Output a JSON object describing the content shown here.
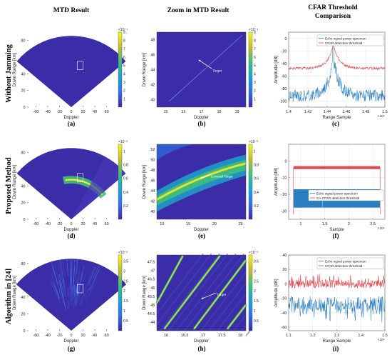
{
  "headers": {
    "col1": "MTD Result",
    "col2": "Zoom in MTD Result",
    "col3_line1": "CFAR Threshold",
    "col3_line2": "Comparison"
  },
  "row_labels": [
    "Without Jamming",
    "Proposed Method",
    "Algorithm in [24]"
  ],
  "captions": [
    "(a)",
    "(b)",
    "(c)",
    "(d)",
    "(e)",
    "(f)",
    "(g)",
    "(h)",
    "(i)"
  ],
  "colors": {
    "field_blue": "#3b2da8",
    "echo_blue": "#2a7fc0",
    "threshold_red": "#e0474c",
    "highlight_yellow": "#f5e62a",
    "highlight_green": "#3fc07a"
  },
  "chart_data": [
    {
      "id": "a",
      "type": "heatmap",
      "panel": "polar-sector",
      "xlabel": "Doppler",
      "ylabel": "Down Range [km]",
      "xticks": [
        "-60",
        "-40",
        "-20",
        "0",
        "20",
        "40",
        "60"
      ],
      "yticks": [
        "0",
        "20",
        "40",
        "60",
        "80"
      ],
      "xlim": [
        -75,
        75
      ],
      "ylim": [
        0,
        90
      ],
      "colorbar_ticks": [
        "1",
        "2",
        "3",
        "4",
        "5",
        "6",
        "7",
        "8",
        "9"
      ],
      "colorbar_exp": "×10⁻⁴",
      "colorbar_range": [
        0,
        9
      ]
    },
    {
      "id": "b",
      "type": "heatmap",
      "panel": "zoom",
      "xlabel": "Doppler",
      "ylabel": "Down Range [km]",
      "xticks": [
        "15",
        "16",
        "17",
        "18",
        "19"
      ],
      "yticks": [
        "40",
        "42",
        "44",
        "46",
        "48"
      ],
      "xlim": [
        14.5,
        19.5
      ],
      "ylim": [
        39,
        49
      ],
      "colorbar_ticks": [
        "1",
        "2",
        "3",
        "4",
        "5",
        "6",
        "7",
        "8",
        "9"
      ],
      "colorbar_exp": "×10⁻⁴",
      "colorbar_range": [
        0,
        9
      ],
      "annotation": "Target",
      "diagonal_lines": [
        {
          "x": [
            15.2,
            19.3
          ],
          "y": [
            39.8,
            48.6
          ]
        }
      ],
      "arrow": {
        "from": [
          17.6,
          44.1
        ],
        "to": [
          16.85,
          45.3
        ]
      }
    },
    {
      "id": "c",
      "type": "line",
      "panel": "cfar",
      "xlabel": "Range Sample",
      "ylabel": "Amplitude [dB]",
      "xticks": [
        "1.4",
        "1.42",
        "1.44",
        "1.46",
        "1.48",
        "1.5"
      ],
      "yticks": [
        "-100",
        "-80",
        "-60",
        "-40",
        "-20",
        "0"
      ],
      "xlim": [
        1.4,
        1.5
      ],
      "ylim": [
        -110,
        10
      ],
      "x_exp": "×10⁴",
      "legend": [
        "Echo signal power spectrum",
        "CFAR detection threshold"
      ],
      "peak_x": 1.4465
    },
    {
      "id": "d",
      "type": "heatmap",
      "panel": "polar-sector",
      "xlabel": "Doppler",
      "ylabel": "Down Range [km]",
      "xticks": [
        "-60",
        "-40",
        "-20",
        "0",
        "20",
        "40",
        "60"
      ],
      "yticks": [
        "0",
        "20",
        "40",
        "60",
        "80"
      ],
      "xlim": [
        -75,
        75
      ],
      "ylim": [
        0,
        90
      ],
      "colorbar_ticks": [
        "0.2",
        "0.4",
        "0.6",
        "0.8",
        "1"
      ],
      "colorbar_exp": "×10⁻³",
      "colorbar_range": [
        0,
        1.1
      ]
    },
    {
      "id": "e",
      "type": "heatmap",
      "panel": "zoom",
      "xlabel": "Doppler",
      "ylabel": "Down Range [km]",
      "xticks": [
        "10",
        "15",
        "20",
        "25"
      ],
      "yticks": [
        "40",
        "42",
        "44",
        "46",
        "48",
        "50",
        "52"
      ],
      "xlim": [
        9,
        26
      ],
      "ylim": [
        38.5,
        53
      ],
      "colorbar_ticks": [
        "0.2",
        "0.4",
        "0.6",
        "0.8",
        "1"
      ],
      "colorbar_exp": "×10⁻³",
      "colorbar_range": [
        0,
        1.1
      ],
      "annotation": "Covered Target",
      "arrow": {
        "from": [
          19.2,
          47.1
        ],
        "to": [
          17.3,
          46.4
        ]
      }
    },
    {
      "id": "f",
      "type": "line",
      "panel": "cfar",
      "xlabel": "Sample",
      "ylabel": "Amplitude [dB]",
      "xticks": [
        "1",
        "1.5",
        "2",
        "2.5"
      ],
      "yticks": [
        "-30",
        "-20",
        "-10",
        "0"
      ],
      "xlim": [
        0.75,
        2.75
      ],
      "ylim": [
        -35,
        10
      ],
      "x_exp": "×10⁴",
      "legend": [
        "Echo signal power spectrum",
        "CA-CFAR detection threshold"
      ],
      "threshold_level": -4,
      "band": [
        -28,
        -17
      ]
    },
    {
      "id": "g",
      "type": "heatmap",
      "panel": "polar-sector",
      "xlabel": "Doppler",
      "ylabel": "Down Range [km]",
      "xticks": [
        "-60",
        "-40",
        "-20",
        "0",
        "20",
        "40",
        "60"
      ],
      "yticks": [
        "0",
        "20",
        "40",
        "60",
        "80"
      ],
      "xlim": [
        -75,
        75
      ],
      "ylim": [
        0,
        90
      ],
      "colorbar_ticks": [
        "0.5",
        "1",
        "1.5",
        "2",
        "2.5",
        "3",
        "3.5"
      ],
      "colorbar_exp": "×10⁻³",
      "colorbar_range": [
        0,
        3.8
      ]
    },
    {
      "id": "h",
      "type": "heatmap",
      "panel": "zoom",
      "xlabel": "Doppler",
      "ylabel": "Down Range [km]",
      "xticks": [
        "16",
        "16.5",
        "17",
        "17.5",
        "18"
      ],
      "yticks": [
        "44",
        "44.5",
        "45",
        "45.5",
        "46",
        "46.5",
        "47",
        "47.5"
      ],
      "xlim": [
        15.75,
        18.15
      ],
      "ylim": [
        43.5,
        47.9
      ],
      "colorbar_ticks": [
        "0.5",
        "1",
        "1.5",
        "2",
        "2.5",
        "3",
        "3.5"
      ],
      "colorbar_exp": "×10⁻³",
      "colorbar_range": [
        0,
        3.8
      ],
      "annotation": "Target",
      "diagonal_lines": [
        {
          "x": [
            15.95,
            17.45
          ],
          "y": [
            43.6,
            47.85
          ]
        },
        {
          "x": [
            16.75,
            18.15
          ],
          "y": [
            43.6,
            47.6
          ]
        },
        {
          "x": [
            15.75,
            16.45
          ],
          "y": [
            45.1,
            47.85
          ]
        },
        {
          "x": [
            17.65,
            18.15
          ],
          "y": [
            43.6,
            45.0
          ]
        }
      ],
      "arrow": {
        "from": [
          17.35,
          45.7
        ],
        "to": [
          16.95,
          45.35
        ]
      }
    },
    {
      "id": "i",
      "type": "line",
      "panel": "cfar",
      "xlabel": "Range Sample",
      "ylabel": "Amplitude [dB]",
      "xticks": [
        "1.1",
        "1.2",
        "1.3",
        "1.4",
        "1.5"
      ],
      "yticks": [
        "-60",
        "-40",
        "-20",
        "0",
        "20",
        "40"
      ],
      "xlim": [
        1.1,
        1.5
      ],
      "ylim": [
        -65,
        40
      ],
      "x_exp": "×10⁴",
      "legend": [
        "Echo signal power spectrum",
        "CFAR detection threshold"
      ],
      "threshold_level": 0,
      "band": [
        -38,
        -18
      ]
    }
  ]
}
